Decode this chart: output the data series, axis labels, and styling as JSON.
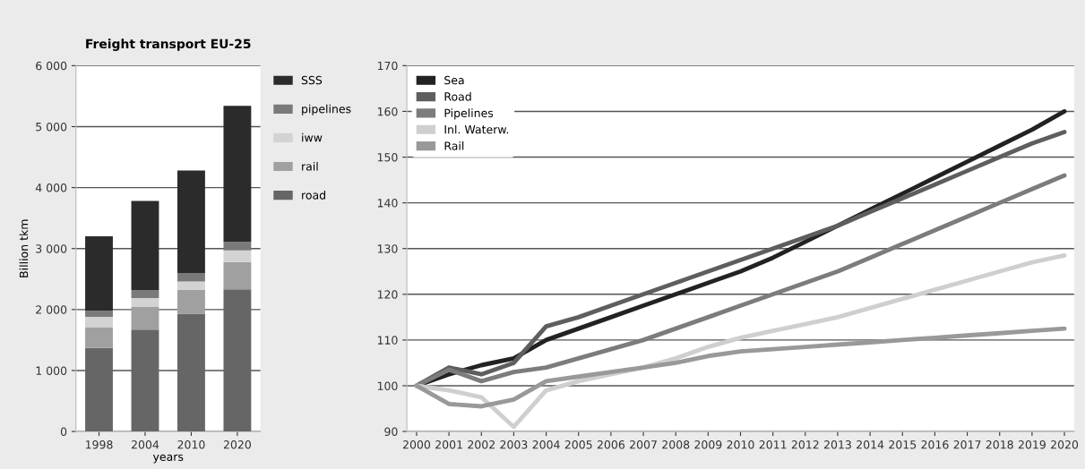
{
  "chart_data": [
    {
      "type": "bar",
      "title": "Freight transport EU-25",
      "xlabel": "years",
      "ylabel": "Billion tkm",
      "categories": [
        "1998",
        "2004",
        "2010",
        "2020"
      ],
      "stacked": true,
      "series": [
        {
          "name": "road",
          "color": "#666666",
          "values": [
            1370,
            1670,
            1930,
            2330
          ]
        },
        {
          "name": "rail",
          "color": "#a0a0a0",
          "values": [
            340,
            370,
            390,
            450
          ]
        },
        {
          "name": "iww",
          "color": "#d3d3d3",
          "values": [
            170,
            150,
            140,
            190
          ]
        },
        {
          "name": "pipelines",
          "color": "#7a7a7a",
          "values": [
            100,
            130,
            140,
            140
          ]
        },
        {
          "name": "SSS",
          "color": "#2b2b2b",
          "values": [
            1220,
            1460,
            1680,
            2230
          ]
        }
      ],
      "ylim": [
        0,
        6000
      ],
      "yticks": [
        {
          "value": 0,
          "label": "0"
        },
        {
          "value": 1000,
          "label": "1 000"
        },
        {
          "value": 2000,
          "label": "2 000"
        },
        {
          "value": 3000,
          "label": "3 000"
        },
        {
          "value": 4000,
          "label": "4 000"
        },
        {
          "value": 5000,
          "label": "5 000"
        },
        {
          "value": 6000,
          "label": "6 000"
        }
      ],
      "grid": "y",
      "legend": "right"
    },
    {
      "type": "line",
      "categories": [
        "2000",
        "2001",
        "2002",
        "2003",
        "2004",
        "2005",
        "2006",
        "2007",
        "2008",
        "2009",
        "2010",
        "2011",
        "2012",
        "2013",
        "2014",
        "2015",
        "2016",
        "2017",
        "2018",
        "2019",
        "2020"
      ],
      "series": [
        {
          "name": "Sea",
          "color": "#222222",
          "values": [
            100,
            102.5,
            104.5,
            106,
            110,
            112.5,
            115,
            117.5,
            120,
            122.5,
            125,
            128,
            131.5,
            135,
            138.5,
            142,
            145.5,
            149,
            152.5,
            156,
            160
          ]
        },
        {
          "name": "Road",
          "color": "#5e5e5e",
          "values": [
            100,
            104,
            102.5,
            105,
            113,
            115,
            117.5,
            120,
            122.5,
            125,
            127.5,
            130,
            132.5,
            135,
            138,
            141,
            144,
            147,
            150,
            153,
            155.5
          ]
        },
        {
          "name": "Pipelines",
          "color": "#7c7c7c",
          "values": [
            100,
            103.5,
            101,
            103,
            104,
            106,
            108,
            110,
            112.5,
            115,
            117.5,
            120,
            122.5,
            125,
            128,
            131,
            134,
            137,
            140,
            143,
            146
          ]
        },
        {
          "name": "Inl. Waterw.",
          "color": "#cfcfcf",
          "values": [
            100,
            99,
            97.5,
            91,
            99,
            101,
            102.5,
            104,
            106,
            108.5,
            110.5,
            112,
            113.5,
            115,
            117,
            119,
            121,
            123,
            125,
            127,
            128.5
          ]
        },
        {
          "name": "Rail",
          "color": "#999999",
          "values": [
            100,
            96,
            95.5,
            97,
            101,
            102,
            103,
            104,
            105,
            106.5,
            107.5,
            108,
            108.5,
            109,
            109.5,
            110,
            110.5,
            111,
            111.5,
            112,
            112.5
          ]
        }
      ],
      "ylim": [
        90,
        170
      ],
      "yticks": [
        90,
        100,
        110,
        120,
        130,
        140,
        150,
        160,
        170
      ],
      "grid": "y",
      "legend": "top left",
      "line_style": "solid",
      "marker": "none"
    }
  ]
}
